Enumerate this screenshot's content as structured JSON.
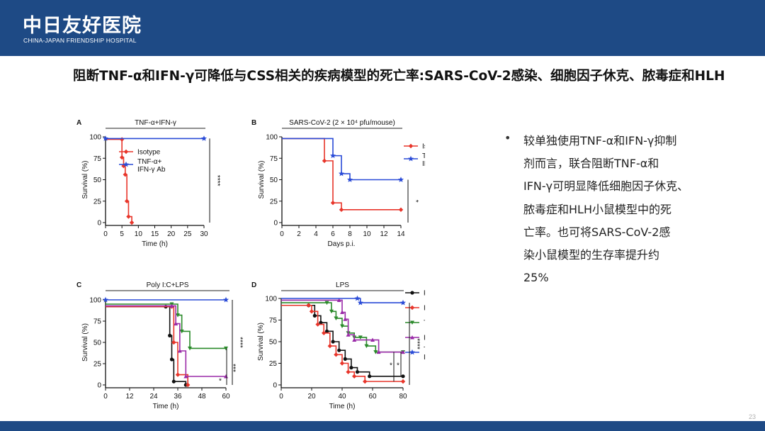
{
  "header": {
    "logo_cn": "中日友好医院",
    "logo_en": "CHINA-JAPAN FRIENDSHIP HOSPITAL",
    "bar_color": "#1e4a85"
  },
  "slide": {
    "title": "阻断TNF-α和IFN-γ可降低与CSS相关的疾病模型的死亡率:SARS-CoV-2感染、细胞因子休克、脓毒症和HLH",
    "bullet_lines": [
      "较单独使用TNF-α和IFN-γ抑制",
      "剂而言，联合阻断TNF-α和",
      "IFN-γ可明显降低细胞因子休克、",
      "脓毒症和HLH小鼠模型中的死",
      "亡率。也可将SARS-CoV-2感",
      "染小鼠模型的生存率提升约",
      "25%"
    ],
    "bullet_marker": "•",
    "page_number": "23"
  },
  "chart_data": [
    {
      "panel": "A",
      "type": "line",
      "title": "TNF-α+IFN-γ",
      "xlabel": "Time (h)",
      "ylabel": "Survival (%)",
      "xlim": [
        0,
        30
      ],
      "ylim": [
        0,
        100
      ],
      "xticks": [
        0,
        5,
        10,
        15,
        20,
        25,
        30
      ],
      "yticks": [
        0,
        25,
        50,
        75,
        100
      ],
      "significance": [
        "****"
      ],
      "series": [
        {
          "name": "Isotype",
          "color": "#e8352a",
          "marker": "diamond",
          "x": [
            0,
            5,
            5,
            5.5,
            6,
            6.5,
            7,
            8
          ],
          "y": [
            97,
            97,
            76,
            66,
            56,
            25,
            7,
            0
          ]
        },
        {
          "name": "TNF-α+ IFN-γ Ab",
          "color": "#2a4bd7",
          "marker": "star",
          "x": [
            0,
            30
          ],
          "y": [
            98,
            98
          ]
        }
      ]
    },
    {
      "panel": "B",
      "type": "line",
      "title": "SARS-CoV-2 (2 × 10⁴ pfu/mouse)",
      "xlabel": "Days p.i.",
      "ylabel": "Survival (%)",
      "xlim": [
        0,
        14
      ],
      "ylim": [
        0,
        100
      ],
      "xticks": [
        0,
        2,
        4,
        6,
        8,
        10,
        12,
        14
      ],
      "yticks": [
        0,
        25,
        50,
        75,
        100
      ],
      "significance": [
        "*"
      ],
      "series": [
        {
          "name": "Isotype",
          "color": "#e8352a",
          "marker": "diamond",
          "x": [
            0,
            5,
            6,
            7,
            14
          ],
          "y": [
            98,
            72,
            23,
            15,
            15
          ]
        },
        {
          "name": "TNF-α+ IFN-γ Ab",
          "color": "#2a4bd7",
          "marker": "star",
          "x": [
            0,
            6,
            7,
            8,
            14
          ],
          "y": [
            98,
            78,
            57,
            50,
            50
          ]
        }
      ]
    },
    {
      "panel": "C",
      "type": "line",
      "title": "Poly I:C+LPS",
      "xlabel": "Time (h)",
      "ylabel": "Survival (%)",
      "xlim": [
        0,
        60
      ],
      "ylim": [
        0,
        100
      ],
      "xticks": [
        0,
        12,
        24,
        36,
        48,
        60
      ],
      "yticks": [
        0,
        25,
        50,
        75,
        100
      ],
      "significance": [
        "****",
        "***",
        "*"
      ],
      "series": [
        {
          "name": "PBS",
          "color": "#111111",
          "marker": "circle",
          "x": [
            0,
            30,
            32,
            33,
            34,
            40
          ],
          "y": [
            92,
            92,
            58,
            30,
            4,
            0
          ]
        },
        {
          "name": "Isotype",
          "color": "#e8352a",
          "marker": "diamond",
          "x": [
            0,
            33,
            34,
            36,
            41
          ],
          "y": [
            92,
            92,
            50,
            12,
            0
          ]
        },
        {
          "name": "TNF-α Ab",
          "color": "#2a8a2a",
          "marker": "triangle",
          "x": [
            0,
            33,
            36,
            38,
            42,
            60
          ],
          "y": [
            95,
            95,
            82,
            63,
            43,
            43
          ]
        },
        {
          "name": "IFN-γ Ab",
          "color": "#9a2aa8",
          "marker": "triangle",
          "x": [
            0,
            33,
            35,
            37,
            40,
            60
          ],
          "y": [
            93,
            93,
            72,
            40,
            10,
            10
          ]
        },
        {
          "name": "TNF-α+ IFN-γ Ab",
          "color": "#2a4bd7",
          "marker": "star",
          "x": [
            0,
            60
          ],
          "y": [
            100,
            100
          ]
        }
      ]
    },
    {
      "panel": "D",
      "type": "line",
      "title": "LPS",
      "xlabel": "Time (h)",
      "ylabel": "Survival (%)",
      "xlim": [
        0,
        80
      ],
      "ylim": [
        0,
        100
      ],
      "xticks": [
        0,
        20,
        40,
        60,
        80
      ],
      "yticks": [
        0,
        25,
        50,
        75,
        100
      ],
      "significance": [
        "****",
        "*",
        "*"
      ],
      "series": [
        {
          "name": "PBS",
          "color": "#111111",
          "marker": "circle",
          "x": [
            0,
            18,
            22,
            26,
            30,
            34,
            38,
            42,
            46,
            50,
            58,
            80
          ],
          "y": [
            92,
            92,
            80,
            72,
            62,
            50,
            40,
            30,
            20,
            15,
            10,
            10
          ]
        },
        {
          "name": "Isotype",
          "color": "#e8352a",
          "marker": "diamond",
          "x": [
            0,
            18,
            20,
            24,
            28,
            32,
            36,
            40,
            44,
            48,
            55,
            80
          ],
          "y": [
            92,
            92,
            85,
            70,
            60,
            45,
            35,
            25,
            15,
            10,
            4,
            4
          ]
        },
        {
          "name": "TNF-α Ab",
          "color": "#2a8a2a",
          "marker": "triangle",
          "x": [
            0,
            30,
            33,
            36,
            40,
            44,
            48,
            52,
            56,
            62,
            80
          ],
          "y": [
            95,
            95,
            85,
            77,
            68,
            60,
            55,
            55,
            45,
            38,
            38
          ]
        },
        {
          "name": "IFN-γ Ab",
          "color": "#9a2aa8",
          "marker": "triangle",
          "x": [
            0,
            38,
            40,
            42,
            44,
            48,
            60,
            64,
            80
          ],
          "y": [
            98,
            98,
            84,
            76,
            58,
            52,
            52,
            38,
            38
          ]
        },
        {
          "name": "TNF-α+ IFN-γ Ab",
          "color": "#2a4bd7",
          "marker": "star",
          "x": [
            0,
            50,
            52,
            80
          ],
          "y": [
            100,
            100,
            95,
            95
          ]
        }
      ]
    }
  ]
}
